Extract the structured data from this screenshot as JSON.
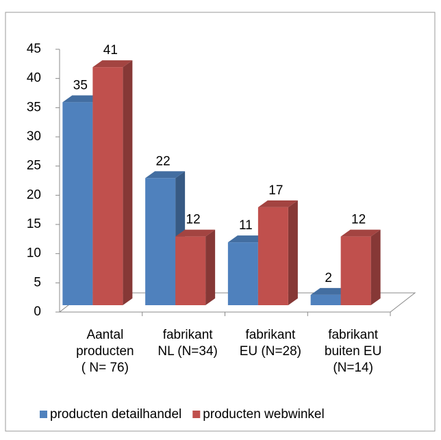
{
  "chart_data": {
    "type": "bar3d",
    "categories": [
      "Aantal\nproducten\n( N= 76)",
      "fabrikant\nNL (N=34)",
      "fabrikant\nEU (N=28)",
      "fabrikant\nbuiten EU\n(N=14)"
    ],
    "series": [
      {
        "name": "producten detailhandel",
        "color": "#4f81bd",
        "values": [
          35,
          22,
          11,
          2
        ]
      },
      {
        "name": "producten webwinkel",
        "color": "#c0504d",
        "values": [
          41,
          12,
          17,
          12
        ]
      }
    ],
    "ylim": [
      0,
      45
    ],
    "yticks": [
      0,
      5,
      10,
      15,
      20,
      25,
      30,
      35,
      40,
      45
    ],
    "data_labels": true
  }
}
